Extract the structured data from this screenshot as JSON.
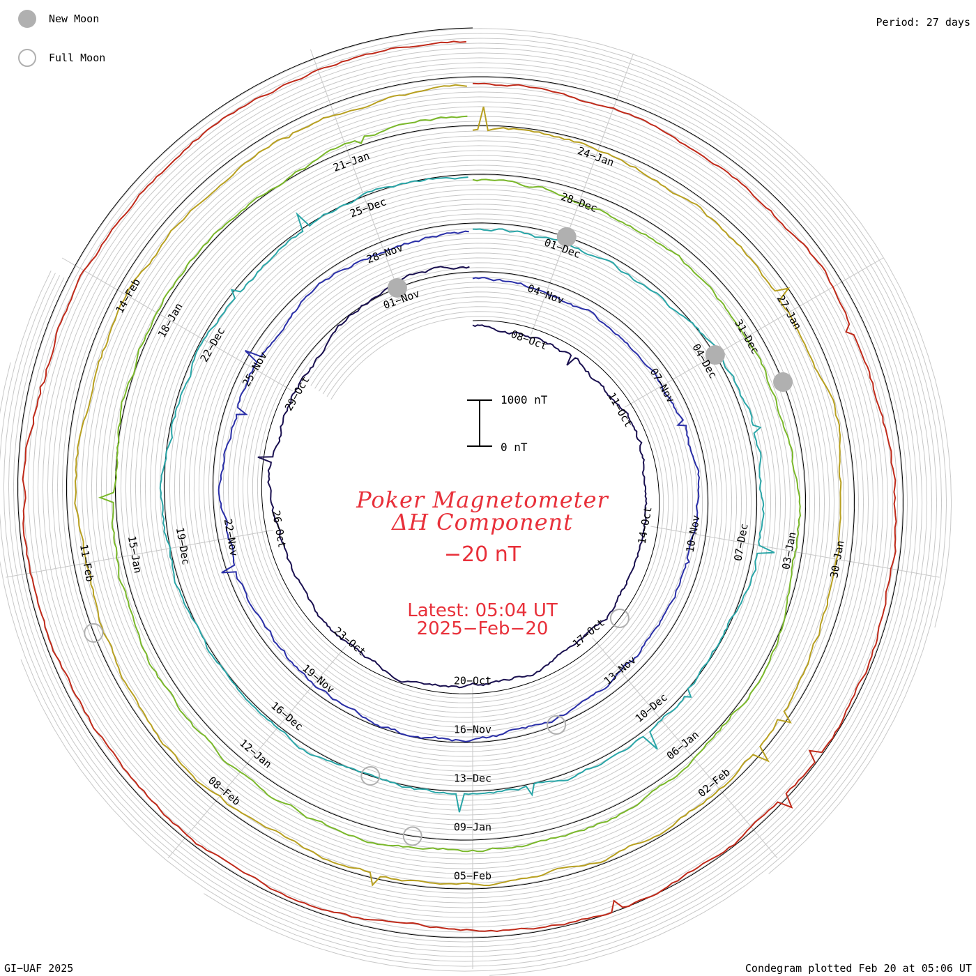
{
  "legend": {
    "new_moon_label": "New Moon",
    "full_moon_label": "Full Moon"
  },
  "period_label": "Period: 27 days",
  "title": {
    "line1": "Poker Magnetometer",
    "line2": "ΔH Component",
    "value": "−20 nT"
  },
  "latest": {
    "time": "Latest: 05:04 UT",
    "date": "2025−Feb−20"
  },
  "scale_bar": {
    "top_label": "1000 nT",
    "bottom_label": "0 nT"
  },
  "footer": {
    "credit": "GI−UAF 2025",
    "plotted": "Condegram plotted Feb 20 at 05:06 UT"
  },
  "colors": {
    "grid": "#c8c8c8",
    "baseline": "#000000",
    "title": "#e8303a",
    "moon": "#b0b0b0"
  },
  "chart_data": {
    "type": "line",
    "title": "Poker Magnetometer ΔH Component",
    "layout": "spiral condegram, clockwise from top",
    "period_days": 27,
    "scale_nT": [
      0,
      1000
    ],
    "series": [
      {
        "name": "",
        "color": "#1a1050",
        "start_deg": -56,
        "date_labels": [
          {
            "label": "08−Oct",
            "deg": 20
          },
          {
            "label": "11−Oct",
            "deg": 60
          },
          {
            "label": "14−Oct",
            "deg": 100
          },
          {
            "label": "17−Oct",
            "deg": 140
          },
          {
            "label": "20−Oct",
            "deg": 180
          },
          {
            "label": "23−Oct",
            "deg": 220
          },
          {
            "label": "26−Oct",
            "deg": 260
          },
          {
            "label": "29−Oct",
            "deg": 300
          },
          {
            "label": "01−Nov",
            "deg": 340
          }
        ]
      },
      {
        "name": "",
        "color": "#2a2fa8",
        "start_deg": -95,
        "date_labels": [
          {
            "label": "04−Nov",
            "deg": 20
          },
          {
            "label": "07−Nov",
            "deg": 60
          },
          {
            "label": "10−Nov",
            "deg": 100
          },
          {
            "label": "13−Nov",
            "deg": 140
          },
          {
            "label": "16−Nov",
            "deg": 180
          },
          {
            "label": "19−Nov",
            "deg": 220
          },
          {
            "label": "22−Nov",
            "deg": 260
          },
          {
            "label": "25−Nov",
            "deg": 300
          },
          {
            "label": "28−Nov",
            "deg": 340
          }
        ]
      },
      {
        "name": "",
        "color": "#2aa6a8",
        "start_deg": -140,
        "date_labels": [
          {
            "label": "01−Dec",
            "deg": 20
          },
          {
            "label": "04−Dec",
            "deg": 60
          },
          {
            "label": "07−Dec",
            "deg": 100
          },
          {
            "label": "10−Dec",
            "deg": 140
          },
          {
            "label": "13−Dec",
            "deg": 180
          },
          {
            "label": "16−Dec",
            "deg": 220
          },
          {
            "label": "19−Dec",
            "deg": 260
          },
          {
            "label": "22−Dec",
            "deg": 300
          },
          {
            "label": "25−Dec",
            "deg": 340
          }
        ]
      },
      {
        "name": "",
        "color": "#7ab82a",
        "start_deg": -170,
        "date_labels": [
          {
            "label": "28−Dec",
            "deg": 20
          },
          {
            "label": "31−Dec",
            "deg": 60
          },
          {
            "label": "03−Jan",
            "deg": 100
          },
          {
            "label": "06−Jan",
            "deg": 140
          },
          {
            "label": "09−Jan",
            "deg": 180
          },
          {
            "label": "12−Jan",
            "deg": 220
          },
          {
            "label": "15−Jan",
            "deg": 260
          },
          {
            "label": "18−Jan",
            "deg": 300
          },
          {
            "label": "21−Jan",
            "deg": 340
          }
        ]
      },
      {
        "name": "",
        "color": "#b8a020",
        "start_deg": -190,
        "date_labels": [
          {
            "label": "24−Jan",
            "deg": 20
          },
          {
            "label": "27−Jan",
            "deg": 60
          },
          {
            "label": "30−Jan",
            "deg": 100
          },
          {
            "label": "02−Feb",
            "deg": 140
          },
          {
            "label": "05−Feb",
            "deg": 180
          },
          {
            "label": "08−Feb",
            "deg": 220
          },
          {
            "label": "11−Feb",
            "deg": 260
          },
          {
            "label": "14−Feb",
            "deg": 300
          }
        ]
      },
      {
        "name": "",
        "color": "#c02a1a",
        "start_deg": 95,
        "date_labels": []
      }
    ],
    "new_moon_markers": [
      "01−Nov",
      "01−Dec",
      "31−Dec",
      "29−Jan"
    ],
    "full_moon_markers": [
      "15−Nov",
      "15−Dec",
      "13−Jan",
      "12−Feb",
      "17−Oct"
    ]
  }
}
